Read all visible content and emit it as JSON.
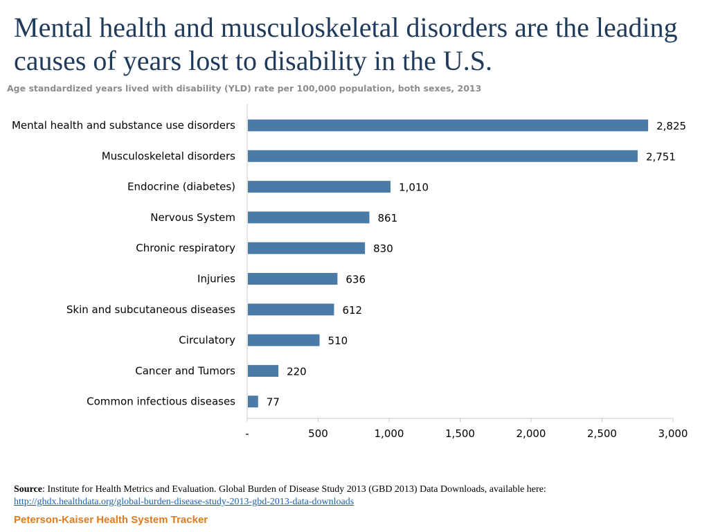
{
  "title": "Mental health and musculoskeletal disorders are the leading causes of years lost to disability in the U.S.",
  "subtitle": "Age standardized years lived with disability (YLD) rate per 100,000 population, both sexes, 2013",
  "colors": {
    "bar": "#4a7aa6",
    "axis": "#c8c8c8",
    "title": "#1f3a5a",
    "brand": "#e07b1f",
    "link": "#1f5fb0"
  },
  "chart_data": {
    "type": "bar",
    "orientation": "horizontal",
    "title": "Mental health and musculoskeletal disorders are the leading causes of years lost to disability in the U.S.",
    "xlabel": "",
    "ylabel": "",
    "xlim": [
      0,
      3000
    ],
    "categories": [
      "Mental health and substance use disorders",
      "Musculoskeletal disorders",
      "Endocrine (diabetes)",
      "Nervous System",
      "Chronic respiratory",
      "Injuries",
      "Skin and subcutaneous diseases",
      "Circulatory",
      "Cancer and Tumors",
      "Common infectious diseases"
    ],
    "values": [
      2825,
      2751,
      1010,
      861,
      830,
      636,
      612,
      510,
      220,
      77
    ],
    "value_labels": [
      "2,825",
      "2,751",
      "1,010",
      "861",
      "830",
      "636",
      "612",
      "510",
      "220",
      "77"
    ],
    "x_ticks": [
      0,
      500,
      1000,
      1500,
      2000,
      2500,
      3000
    ],
    "x_tick_labels": [
      "-",
      "500",
      "1,000",
      "1,500",
      "2,000",
      "2,500",
      "3,000"
    ],
    "grid": false,
    "legend": "none"
  },
  "source": {
    "label": "Source",
    "text": ": Institute for Health Metrics and Evaluation. Global Burden of Disease Study 2013 (GBD 2013) Data Downloads, available here:",
    "url": "http://ghdx.healthdata.org/global-burden-disease-study-2013-gbd-2013-data-downloads"
  },
  "brand": "Peterson-Kaiser Health System Tracker"
}
